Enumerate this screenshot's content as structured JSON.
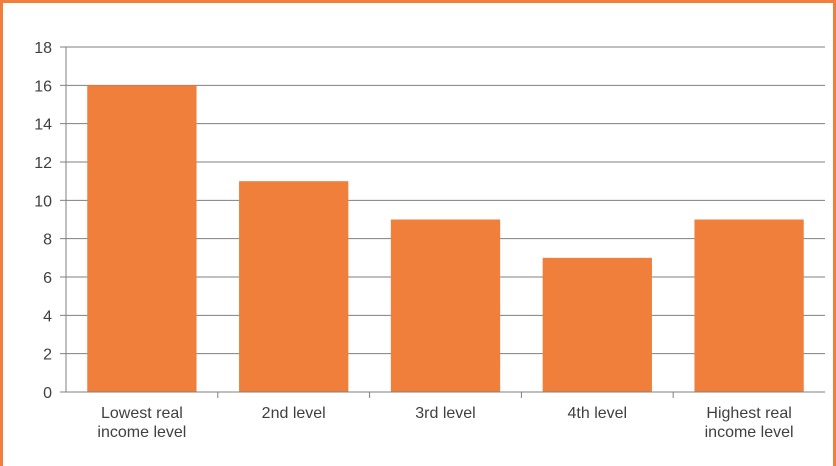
{
  "chart_data": {
    "type": "bar",
    "categories": [
      [
        "Lowest real",
        "income level"
      ],
      [
        "2nd level"
      ],
      [
        "3rd level"
      ],
      [
        "4th level"
      ],
      [
        "Highest real",
        "income level"
      ]
    ],
    "values": [
      16,
      11,
      9,
      7,
      9
    ],
    "ylim": [
      0,
      18
    ],
    "yticks": [
      0,
      2,
      4,
      6,
      8,
      10,
      12,
      14,
      16,
      18
    ],
    "grid": true,
    "bar_color": "#F07F3C",
    "frame_color": "#F07F3C",
    "title": "",
    "xlabel": "",
    "ylabel": ""
  }
}
